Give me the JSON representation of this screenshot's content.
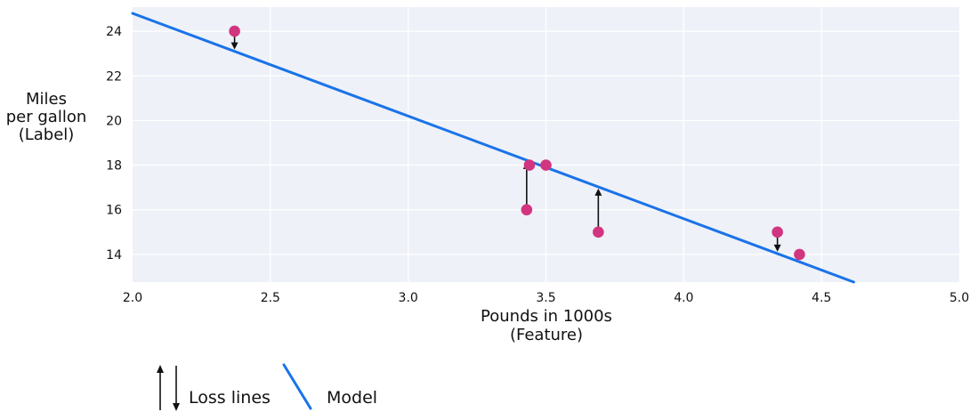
{
  "chart_data": {
    "type": "scatter",
    "title": "",
    "xlabel_lines": [
      "Pounds in 1000s",
      "(Feature)"
    ],
    "ylabel_lines": [
      "Miles",
      "per gallon",
      "(Label)"
    ],
    "xlim": [
      2.0,
      5.0
    ],
    "ylim": [
      12.76,
      25.08
    ],
    "x_ticks": [
      2.0,
      2.5,
      3.0,
      3.5,
      4.0,
      4.5,
      5.0
    ],
    "x_tick_labels": [
      "2.0",
      "2.5",
      "3.0",
      "3.5",
      "4.0",
      "4.5",
      "5.0"
    ],
    "y_ticks": [
      14,
      16,
      18,
      20,
      22,
      24
    ],
    "y_tick_labels": [
      "14",
      "16",
      "18",
      "20",
      "22",
      "24"
    ],
    "grid": true,
    "legend_position": "bottom-left",
    "points": [
      {
        "x": 2.37,
        "y": 24,
        "predicted": 23.1
      },
      {
        "x": 3.44,
        "y": 18,
        "predicted": 18.18
      },
      {
        "x": 3.5,
        "y": 18,
        "predicted": 17.9
      },
      {
        "x": 3.43,
        "y": 16,
        "predicted": 18.22
      },
      {
        "x": 3.69,
        "y": 15,
        "predicted": 17.03
      },
      {
        "x": 4.34,
        "y": 15,
        "predicted": 14.04
      },
      {
        "x": 4.42,
        "y": 14,
        "predicted": 13.67
      }
    ],
    "model_line": {
      "x1": 2.0,
      "y1": 24.8,
      "x2": 4.617,
      "y2": 12.76
    },
    "legend": [
      {
        "icon": "loss-arrows",
        "label": "Loss lines"
      },
      {
        "icon": "model-line",
        "label": "Model"
      }
    ],
    "colors": {
      "point": "#d2357f",
      "model_line": "#1a73e8",
      "plot_background": "#eef1f8",
      "gridline": "#ffffff",
      "text": "#111111",
      "loss_arrow": "#111111"
    }
  }
}
